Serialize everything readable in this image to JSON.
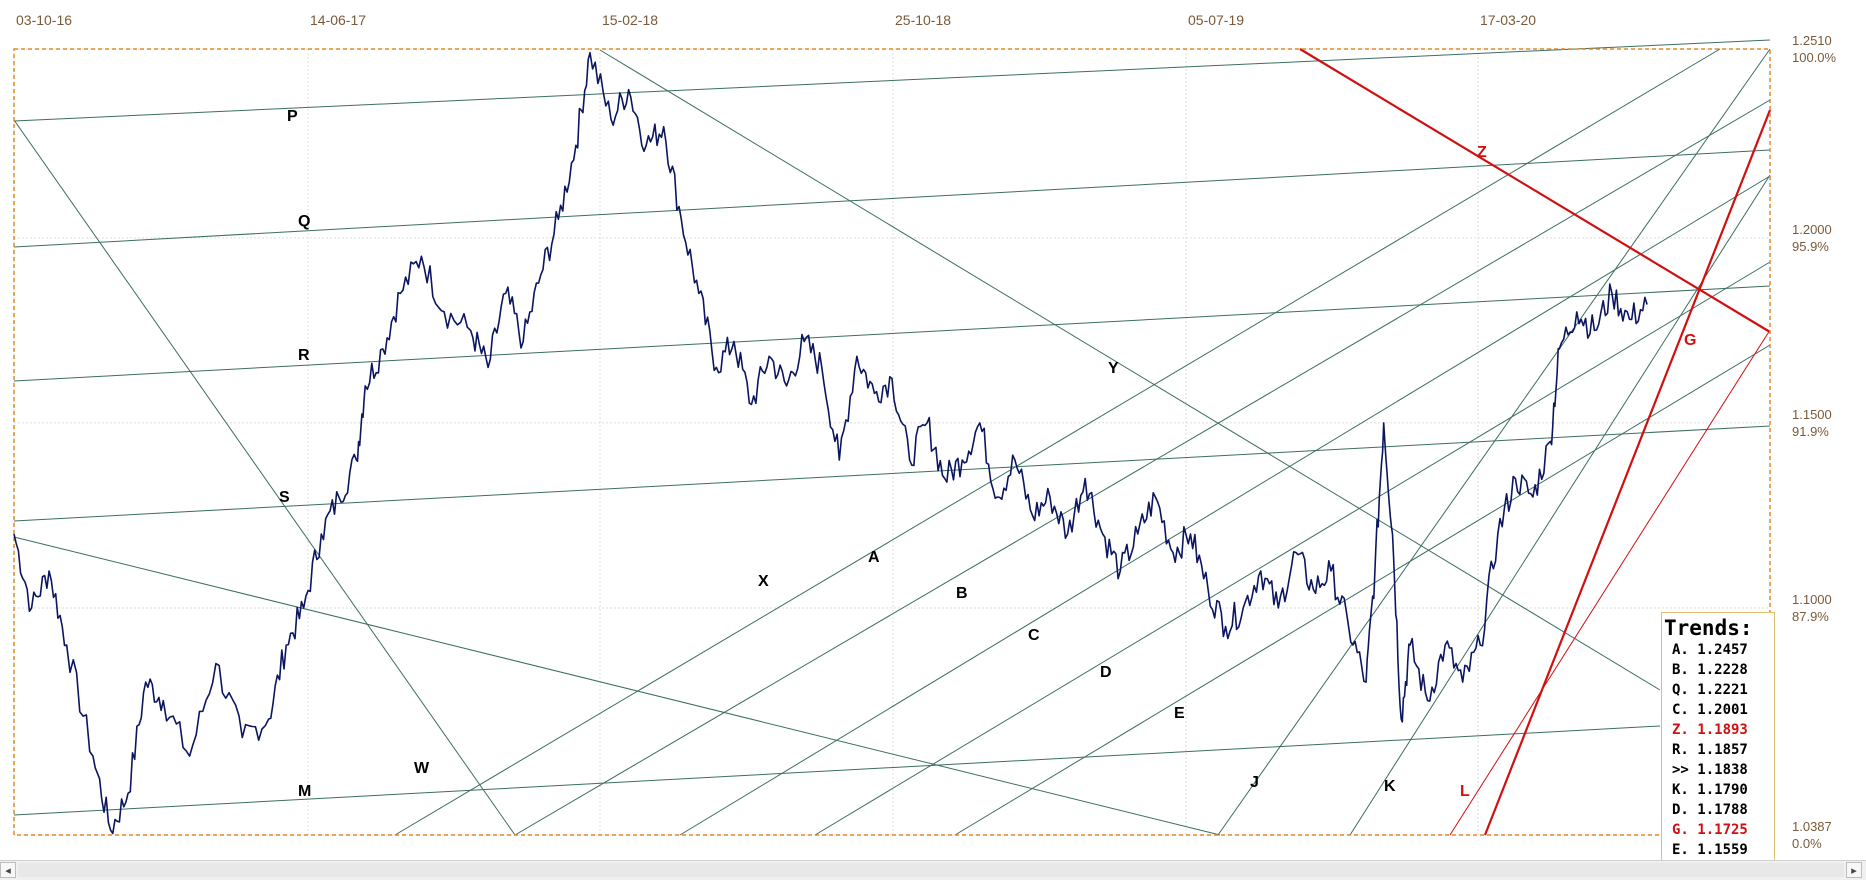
{
  "chart_data": {
    "type": "line",
    "x_tick_labels": [
      "03-10-16",
      "14-06-17",
      "15-02-18",
      "25-10-18",
      "05-07-19",
      "17-03-20"
    ],
    "y_ticks": [
      {
        "price": "1.2510",
        "pct": "100.0%"
      },
      {
        "price": "1.2000",
        "pct": "95.9%"
      },
      {
        "price": "1.1500",
        "pct": "91.9%"
      },
      {
        "price": "1.1000",
        "pct": "87.9%"
      },
      {
        "price": "1.0387",
        "pct": "0.0%"
      }
    ],
    "ylim": [
      1.0387,
      1.251
    ],
    "grid": true,
    "series": [
      {
        "color": "#0b1560",
        "points": [
          [
            0,
            1.12
          ],
          [
            0.01,
            1.1
          ],
          [
            0.02,
            1.11
          ],
          [
            0.03,
            1.09
          ],
          [
            0.045,
            1.06
          ],
          [
            0.055,
            1.04
          ],
          [
            0.065,
            1.05
          ],
          [
            0.075,
            1.08
          ],
          [
            0.085,
            1.075
          ],
          [
            0.1,
            1.06
          ],
          [
            0.115,
            1.085
          ],
          [
            0.13,
            1.065
          ],
          [
            0.145,
            1.07
          ],
          [
            0.155,
            1.09
          ],
          [
            0.165,
            1.1
          ],
          [
            0.175,
            1.12
          ],
          [
            0.185,
            1.13
          ],
          [
            0.195,
            1.14
          ],
          [
            0.2,
            1.16
          ],
          [
            0.21,
            1.17
          ],
          [
            0.22,
            1.185
          ],
          [
            0.232,
            1.195
          ],
          [
            0.245,
            1.18
          ],
          [
            0.26,
            1.175
          ],
          [
            0.27,
            1.165
          ],
          [
            0.28,
            1.185
          ],
          [
            0.29,
            1.172
          ],
          [
            0.3,
            1.19
          ],
          [
            0.31,
            1.205
          ],
          [
            0.32,
            1.225
          ],
          [
            0.328,
            1.25
          ],
          [
            0.34,
            1.232
          ],
          [
            0.35,
            1.24
          ],
          [
            0.36,
            1.225
          ],
          [
            0.37,
            1.23
          ],
          [
            0.38,
            1.205
          ],
          [
            0.39,
            1.185
          ],
          [
            0.4,
            1.165
          ],
          [
            0.41,
            1.172
          ],
          [
            0.42,
            1.155
          ],
          [
            0.43,
            1.168
          ],
          [
            0.44,
            1.16
          ],
          [
            0.45,
            1.172
          ],
          [
            0.46,
            1.165
          ],
          [
            0.47,
            1.14
          ],
          [
            0.48,
            1.168
          ],
          [
            0.49,
            1.158
          ],
          [
            0.5,
            1.162
          ],
          [
            0.51,
            1.14
          ],
          [
            0.52,
            1.15
          ],
          [
            0.53,
            1.135
          ],
          [
            0.54,
            1.14
          ],
          [
            0.55,
            1.15
          ],
          [
            0.56,
            1.13
          ],
          [
            0.57,
            1.14
          ],
          [
            0.58,
            1.125
          ],
          [
            0.59,
            1.13
          ],
          [
            0.6,
            1.12
          ],
          [
            0.61,
            1.135
          ],
          [
            0.62,
            1.12
          ],
          [
            0.63,
            1.11
          ],
          [
            0.64,
            1.12
          ],
          [
            0.65,
            1.13
          ],
          [
            0.66,
            1.115
          ],
          [
            0.67,
            1.12
          ],
          [
            0.68,
            1.105
          ],
          [
            0.69,
            1.095
          ],
          [
            0.7,
            1.1
          ],
          [
            0.71,
            1.11
          ],
          [
            0.72,
            1.1
          ],
          [
            0.73,
            1.115
          ],
          [
            0.74,
            1.105
          ],
          [
            0.75,
            1.11
          ],
          [
            0.76,
            1.095
          ],
          [
            0.77,
            1.08
          ],
          [
            0.775,
            1.11
          ],
          [
            0.78,
            1.15
          ],
          [
            0.785,
            1.12
          ],
          [
            0.79,
            1.07
          ],
          [
            0.795,
            1.09
          ],
          [
            0.805,
            1.075
          ],
          [
            0.815,
            1.09
          ],
          [
            0.825,
            1.08
          ],
          [
            0.835,
            1.09
          ],
          [
            0.845,
            1.12
          ],
          [
            0.855,
            1.135
          ],
          [
            0.865,
            1.13
          ],
          [
            0.875,
            1.145
          ],
          [
            0.88,
            1.17
          ],
          [
            0.89,
            1.18
          ],
          [
            0.9,
            1.175
          ],
          [
            0.91,
            1.185
          ],
          [
            0.92,
            1.178
          ],
          [
            0.93,
            1.182
          ]
        ]
      }
    ],
    "trend_labels": [
      "P",
      "Q",
      "R",
      "S",
      "M",
      "W",
      "X",
      "A",
      "B",
      "C",
      "D",
      "E",
      "Y",
      "Z",
      "G",
      "J",
      "K",
      "L"
    ],
    "trend_label_colors": {
      "Z": "#d01010",
      "G": "#d01010",
      "L": "#d01010"
    },
    "legend": {
      "title": "Trends:",
      "entries": [
        {
          "text": "A. 1.2457",
          "color": "#000000"
        },
        {
          "text": "B. 1.2228",
          "color": "#000000"
        },
        {
          "text": "Q. 1.2221",
          "color": "#000000"
        },
        {
          "text": "C. 1.2001",
          "color": "#000000"
        },
        {
          "text": "Z. 1.1893",
          "color": "#d01010"
        },
        {
          "text": "R. 1.1857",
          "color": "#000000"
        },
        {
          "text": ">> 1.1838",
          "color": "#000000"
        },
        {
          "text": "K. 1.1790",
          "color": "#000000"
        },
        {
          "text": "D. 1.1788",
          "color": "#000000"
        },
        {
          "text": "G. 1.1725",
          "color": "#d01010"
        },
        {
          "text": "E. 1.1559",
          "color": "#000000"
        }
      ]
    }
  },
  "scrollbar": {
    "left_arrow": "◂",
    "right_arrow": "▸"
  }
}
